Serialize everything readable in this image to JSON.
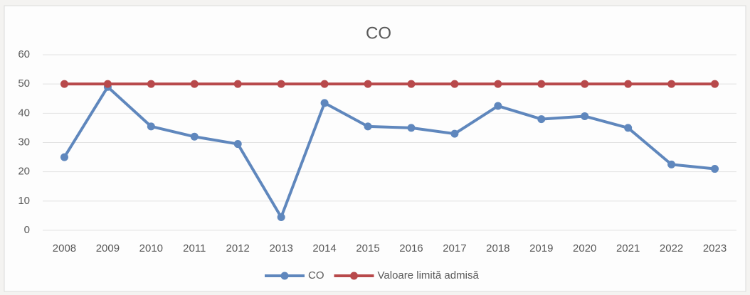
{
  "chart_data": {
    "type": "line",
    "title": "CO",
    "categories": [
      "2008",
      "2009",
      "2010",
      "2011",
      "2012",
      "2013",
      "2014",
      "2015",
      "2016",
      "2017",
      "2018",
      "2019",
      "2020",
      "2021",
      "2022",
      "2023"
    ],
    "series": [
      {
        "name": "CO",
        "color": "#5f87bd",
        "values": [
          25,
          49,
          35.5,
          32,
          29.5,
          4.5,
          43.5,
          35.5,
          35,
          33,
          42.5,
          38,
          39,
          35,
          22.5,
          21
        ]
      },
      {
        "name": "Valoare limită admisă",
        "color": "#b8494b",
        "values": [
          50,
          50,
          50,
          50,
          50,
          50,
          50,
          50,
          50,
          50,
          50,
          50,
          50,
          50,
          50,
          50
        ]
      }
    ],
    "ylim": [
      0,
      60
    ],
    "yticks": [
      0,
      10,
      20,
      30,
      40,
      50,
      60
    ],
    "grid": true,
    "legend": "bottom"
  }
}
